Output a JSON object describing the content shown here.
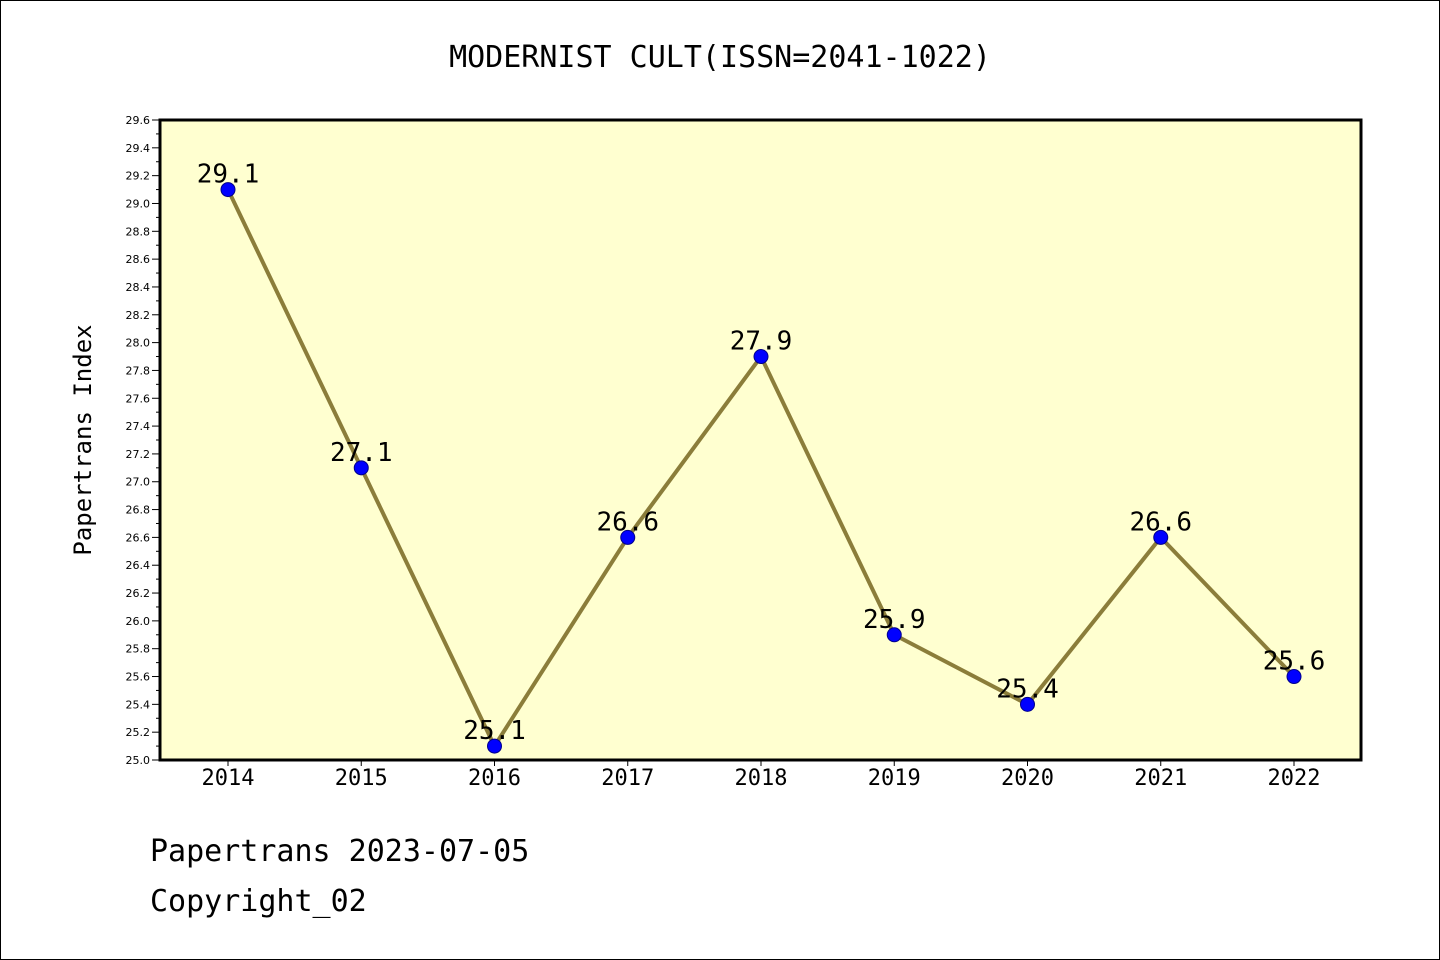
{
  "chart_data": {
    "type": "line",
    "title": "MODERNIST CULT(ISSN=2041-1022)",
    "ylabel": "Papertrans Index",
    "xlabel": "",
    "categories": [
      "2014",
      "2015",
      "2016",
      "2017",
      "2018",
      "2019",
      "2020",
      "2021",
      "2022"
    ],
    "series": [
      {
        "values": [
          29.1,
          27.1,
          25.1,
          26.6,
          27.9,
          25.9,
          25.4,
          26.6,
          25.6
        ],
        "data_labels": [
          "29.1",
          "27.1",
          "25.1",
          "26.6",
          "27.9",
          "25.9",
          "25.4",
          "26.6",
          "25.6"
        ]
      }
    ],
    "ylim": [
      25.0,
      29.6
    ],
    "ytick_step": 0.2,
    "ytick_labels": [
      "25.0",
      "25.2",
      "25.4",
      "25.6",
      "25.8",
      "26.0",
      "26.2",
      "26.4",
      "26.6",
      "26.8",
      "27.0",
      "27.2",
      "27.4",
      "27.6",
      "27.8",
      "28.0",
      "28.2",
      "28.4",
      "28.6",
      "28.8",
      "29.0",
      "29.2",
      "29.4",
      "29.6"
    ],
    "grid": false,
    "legend": "none",
    "colors": {
      "plot_background": "#ffffd0",
      "line": "#8b7d3a",
      "marker": "#0000ff",
      "marker_edge": "#00008b",
      "axes": "#000000"
    }
  },
  "footer": {
    "line1": "Papertrans 2023-07-05",
    "line2": "Copyright_02"
  }
}
